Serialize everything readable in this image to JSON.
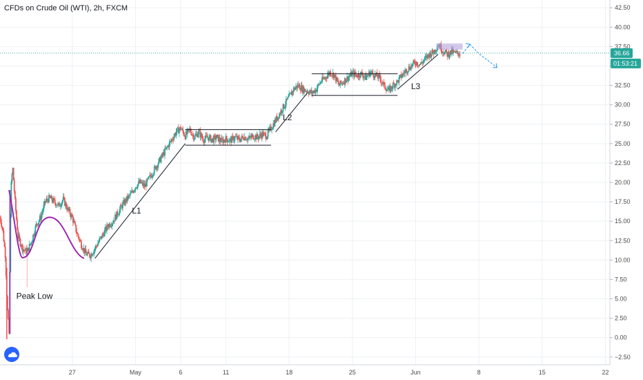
{
  "header": {
    "title": "CFDs on Crude Oil (WTI), 2h, FXCM"
  },
  "price_axis": {
    "current_price": "36.66",
    "countdown": "01:53:21",
    "badge_color": "#26a69a"
  },
  "colors": {
    "bull": "#26a69a",
    "bear": "#ef5350",
    "grid": "#eef0f3",
    "drawing": "#131722",
    "wave": "#9c27b0",
    "arrow": "#2196f3"
  },
  "annotations": {
    "peak_low": "Peak Low",
    "l1": "L1",
    "l2": "L2",
    "l3": "L3"
  },
  "chart_data": {
    "type": "candlestick",
    "title": "CFDs on Crude Oil (WTI), 2h, FXCM",
    "xlabel": "",
    "ylabel": "",
    "ylim": [
      -3.5,
      43.5
    ],
    "grid": true,
    "y_ticks": [
      42.5,
      40.0,
      37.5,
      35.0,
      32.5,
      30.0,
      27.5,
      25.0,
      22.5,
      20.0,
      17.5,
      15.0,
      12.5,
      10.0,
      7.5,
      5.0,
      2.5,
      0.0,
      -2.5
    ],
    "y_tick_labels": [
      "42.50",
      "40.00",
      "37.50",
      "35.00",
      "32.50",
      "30.00",
      "27.50",
      "25.00",
      "22.50",
      "20.00",
      "17.50",
      "15.00",
      "12.50",
      "10.00",
      "7.50",
      "5.00",
      "2.50",
      "0.00",
      "−2.50"
    ],
    "x_ticks": [
      {
        "day": 27,
        "label": "27"
      },
      {
        "day": 34,
        "label": "May"
      },
      {
        "day": 39,
        "label": "6"
      },
      {
        "day": 44,
        "label": "11"
      },
      {
        "day": 51,
        "label": "18"
      },
      {
        "day": 58,
        "label": "25"
      },
      {
        "day": 65,
        "label": "Jun"
      },
      {
        "day": 72,
        "label": "8"
      },
      {
        "day": 79,
        "label": "15"
      },
      {
        "day": 86,
        "label": "22"
      }
    ],
    "x_range": [
      19,
      86.5
    ],
    "path": [
      [
        19.0,
        15.5
      ],
      [
        19.3,
        14.0
      ],
      [
        19.6,
        10.5
      ],
      [
        19.8,
        4.0
      ],
      [
        20.0,
        0.5
      ],
      [
        20.2,
        19.0
      ],
      [
        20.4,
        22.0
      ],
      [
        20.7,
        17.0
      ],
      [
        21.0,
        13.0
      ],
      [
        21.5,
        11.5
      ],
      [
        22.0,
        11.0
      ],
      [
        22.5,
        12.5
      ],
      [
        23.0,
        14.5
      ],
      [
        23.5,
        15.5
      ],
      [
        24.0,
        17.5
      ],
      [
        24.5,
        18.0
      ],
      [
        25.0,
        17.5
      ],
      [
        25.5,
        17.0
      ],
      [
        26.0,
        17.8
      ],
      [
        26.5,
        16.5
      ],
      [
        27.0,
        15.5
      ],
      [
        27.5,
        13.5
      ],
      [
        28.0,
        12.0
      ],
      [
        28.5,
        10.8
      ],
      [
        29.0,
        10.6
      ],
      [
        29.5,
        11.5
      ],
      [
        30.0,
        12.5
      ],
      [
        30.5,
        13.5
      ],
      [
        31.0,
        14.5
      ],
      [
        31.5,
        15.0
      ],
      [
        32.0,
        16.0
      ],
      [
        32.5,
        17.0
      ],
      [
        33.0,
        17.8
      ],
      [
        33.5,
        18.5
      ],
      [
        34.0,
        19.5
      ],
      [
        34.5,
        20.0
      ],
      [
        35.0,
        19.5
      ],
      [
        35.5,
        20.5
      ],
      [
        36.0,
        21.5
      ],
      [
        36.5,
        22.5
      ],
      [
        37.0,
        23.5
      ],
      [
        37.5,
        24.5
      ],
      [
        38.0,
        25.5
      ],
      [
        38.5,
        26.5
      ],
      [
        39.0,
        27.0
      ],
      [
        39.5,
        26.0
      ],
      [
        40.0,
        26.8
      ],
      [
        40.5,
        25.8
      ],
      [
        41.0,
        26.5
      ],
      [
        41.5,
        25.5
      ],
      [
        42.0,
        25.8
      ],
      [
        42.5,
        25.5
      ],
      [
        43.0,
        25.8
      ],
      [
        43.5,
        25.3
      ],
      [
        44.0,
        25.6
      ],
      [
        44.5,
        25.4
      ],
      [
        45.0,
        25.8
      ],
      [
        45.5,
        25.5
      ],
      [
        46.0,
        25.9
      ],
      [
        46.5,
        25.6
      ],
      [
        47.0,
        26.0
      ],
      [
        47.5,
        25.8
      ],
      [
        48.0,
        26.2
      ],
      [
        48.5,
        26.0
      ],
      [
        49.0,
        27.0
      ],
      [
        49.5,
        28.0
      ],
      [
        50.0,
        29.0
      ],
      [
        50.5,
        30.0
      ],
      [
        51.0,
        31.0
      ],
      [
        51.5,
        32.0
      ],
      [
        52.0,
        32.5
      ],
      [
        52.5,
        32.0
      ],
      [
        53.0,
        31.8
      ],
      [
        53.5,
        31.5
      ],
      [
        54.0,
        32.0
      ],
      [
        54.5,
        33.0
      ],
      [
        55.0,
        33.5
      ],
      [
        55.5,
        34.2
      ],
      [
        56.0,
        33.8
      ],
      [
        56.5,
        32.5
      ],
      [
        57.0,
        33.0
      ],
      [
        57.5,
        33.5
      ],
      [
        58.0,
        34.0
      ],
      [
        58.5,
        33.8
      ],
      [
        59.0,
        34.0
      ],
      [
        59.5,
        33.5
      ],
      [
        60.0,
        34.2
      ],
      [
        60.5,
        33.8
      ],
      [
        61.0,
        33.5
      ],
      [
        61.5,
        32.5
      ],
      [
        62.0,
        31.8
      ],
      [
        62.5,
        32.5
      ],
      [
        63.0,
        33.0
      ],
      [
        63.5,
        33.8
      ],
      [
        64.0,
        34.5
      ],
      [
        64.5,
        35.0
      ],
      [
        65.0,
        35.5
      ],
      [
        65.5,
        35.2
      ],
      [
        66.0,
        35.8
      ],
      [
        66.5,
        36.5
      ],
      [
        67.0,
        36.8
      ],
      [
        67.5,
        37.8
      ],
      [
        68.0,
        37.0
      ],
      [
        68.5,
        36.5
      ],
      [
        69.0,
        36.8
      ],
      [
        69.5,
        36.6
      ],
      [
        70.0,
        36.66
      ]
    ],
    "lines": [
      {
        "name": "L1",
        "points": [
          [
            29.5,
            10.2
          ],
          [
            39.5,
            25.0
          ]
        ]
      },
      {
        "name": "L2",
        "points": [
          [
            49.5,
            26.5
          ],
          [
            53.0,
            31.5
          ]
        ]
      },
      {
        "name": "L3",
        "points": [
          [
            63.0,
            32.0
          ],
          [
            67.5,
            36.5
          ]
        ]
      }
    ],
    "ranges": [
      {
        "from": 39.5,
        "to": 49.0,
        "top": 26.8,
        "bottom": 24.8
      },
      {
        "from": 53.5,
        "to": 63.0,
        "top": 34.0,
        "bottom": 31.2
      }
    ],
    "highlight_box": {
      "from": 67.3,
      "to": 70.2,
      "top": 37.9,
      "bottom": 37.1
    },
    "wave": [
      [
        20.0,
        19.0
      ],
      [
        21.5,
        10.3
      ],
      [
        24.5,
        15.5
      ],
      [
        27.5,
        11.0
      ],
      [
        28.3,
        10.2
      ]
    ],
    "forecast": [
      [
        70.2,
        36.6
      ],
      [
        71.0,
        37.8
      ],
      [
        72.0,
        36.6
      ],
      [
        74.0,
        34.8
      ]
    ],
    "current_line": 36.66
  }
}
